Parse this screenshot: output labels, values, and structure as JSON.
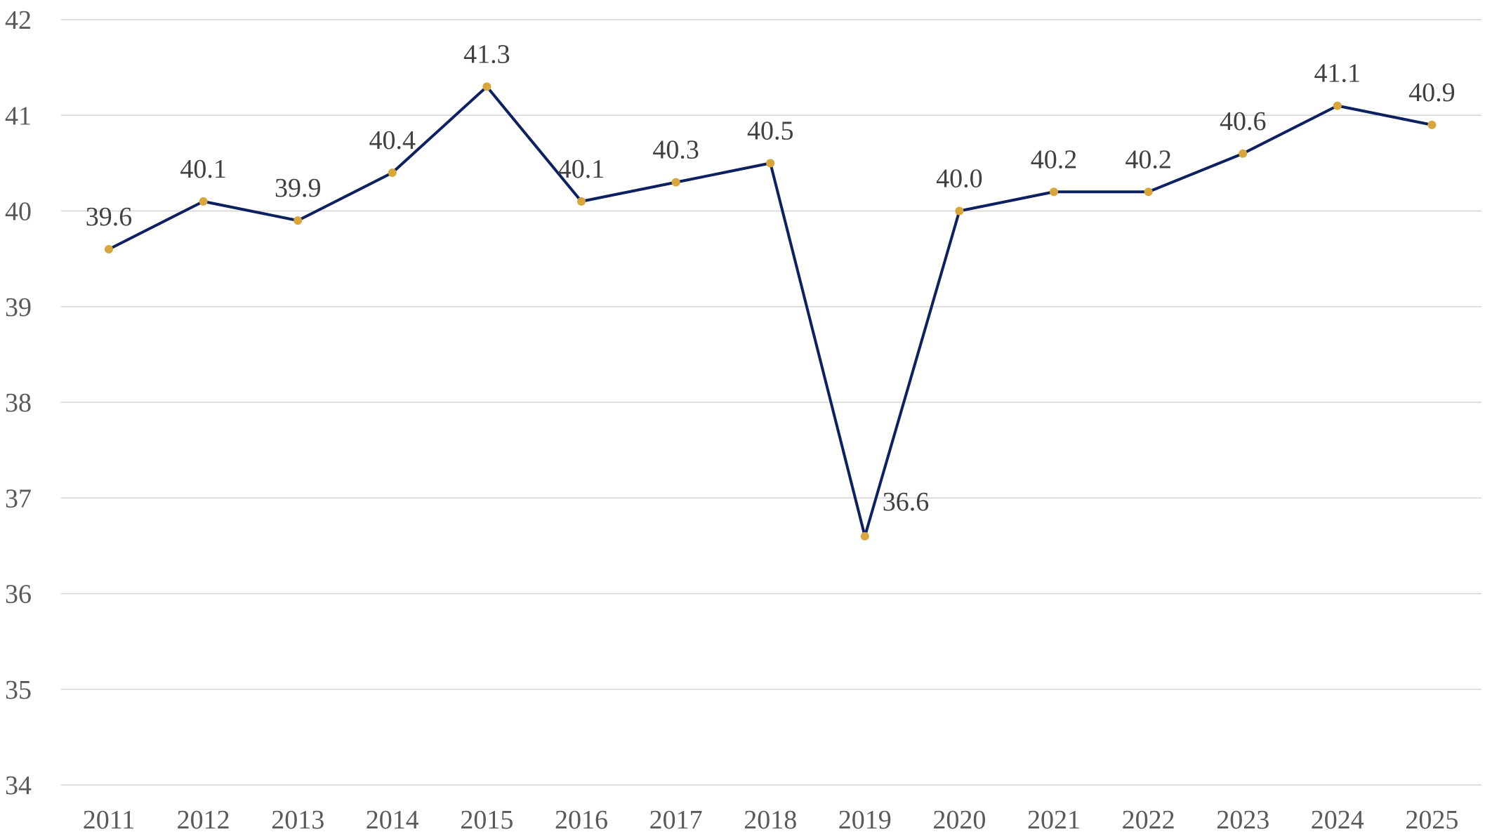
{
  "chart_data": {
    "type": "line",
    "title": "",
    "xlabel": "",
    "ylabel": "",
    "categories": [
      "2011",
      "2012",
      "2013",
      "2014",
      "2015",
      "2016",
      "2017",
      "2018",
      "2019",
      "2020",
      "2021",
      "2022",
      "2023",
      "2024",
      "2025"
    ],
    "series": [
      {
        "values": [
          39.6,
          40.1,
          39.9,
          40.4,
          41.3,
          40.1,
          40.3,
          40.5,
          36.6,
          40.0,
          40.2,
          40.2,
          40.6,
          41.1,
          40.9
        ],
        "data_labels": [
          "39.6",
          "40.1",
          "39.9",
          "40.4",
          "41.3",
          "40.1",
          "40.3",
          "40.5",
          "36.6",
          "40.0",
          "40.2",
          "40.2",
          "40.6",
          "41.1",
          "40.9"
        ]
      }
    ],
    "ylim": [
      34,
      42
    ],
    "yticks": [
      "34",
      "35",
      "36",
      "37",
      "38",
      "39",
      "40",
      "41",
      "42"
    ],
    "grid": true,
    "legend": "none",
    "colors": {
      "line": "#0d2160",
      "marker": "#d9a63c",
      "grid": "#d4d4d4",
      "tick_text": "#595959",
      "label_text": "#404040"
    }
  }
}
